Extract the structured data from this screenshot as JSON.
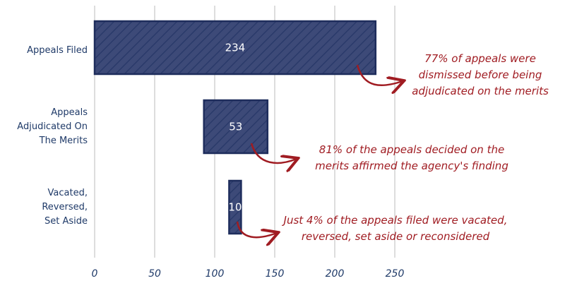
{
  "chart_data": {
    "type": "bar",
    "orientation": "horizontal",
    "style": "floating waterfall bars with diagonal hatching",
    "categories": [
      "Appeals Filed",
      "Appeals Adjudicated On The Merits",
      "Vacated, Reversed, Set Aside"
    ],
    "category_lines": [
      [
        "Appeals Filed"
      ],
      [
        "Appeals",
        "Adjudicated On",
        "The Merits"
      ],
      [
        "Vacated,",
        "Reversed,",
        "Set Aside"
      ]
    ],
    "values": [
      234,
      53,
      10
    ],
    "bar_starts": [
      0,
      91,
      112
    ],
    "data_labels": [
      "234",
      "53",
      "10"
    ],
    "xlim": [
      0,
      270
    ],
    "xticks": [
      0,
      50,
      100,
      150,
      200,
      250
    ],
    "grid": true,
    "title": "",
    "xlabel": "",
    "ylabel": "",
    "annotations": [
      {
        "lines": [
          "77% of appeals were",
          "dismissed before being",
          "adjudicated on the merits"
        ]
      },
      {
        "lines": [
          "81% of the appeals decided on the",
          "merits affirmed the agency's finding"
        ]
      },
      {
        "lines": [
          "Just 4% of the appeals filed were vacated,",
          "reversed, set aside or reconsidered"
        ]
      }
    ],
    "colors": {
      "bar": "#3d4a78",
      "bar_border": "#1e2d5c",
      "hatch": "#2a3a6a",
      "text": "#1f3a68",
      "annotation": "#a01c22",
      "grid": "#dddddd"
    }
  }
}
